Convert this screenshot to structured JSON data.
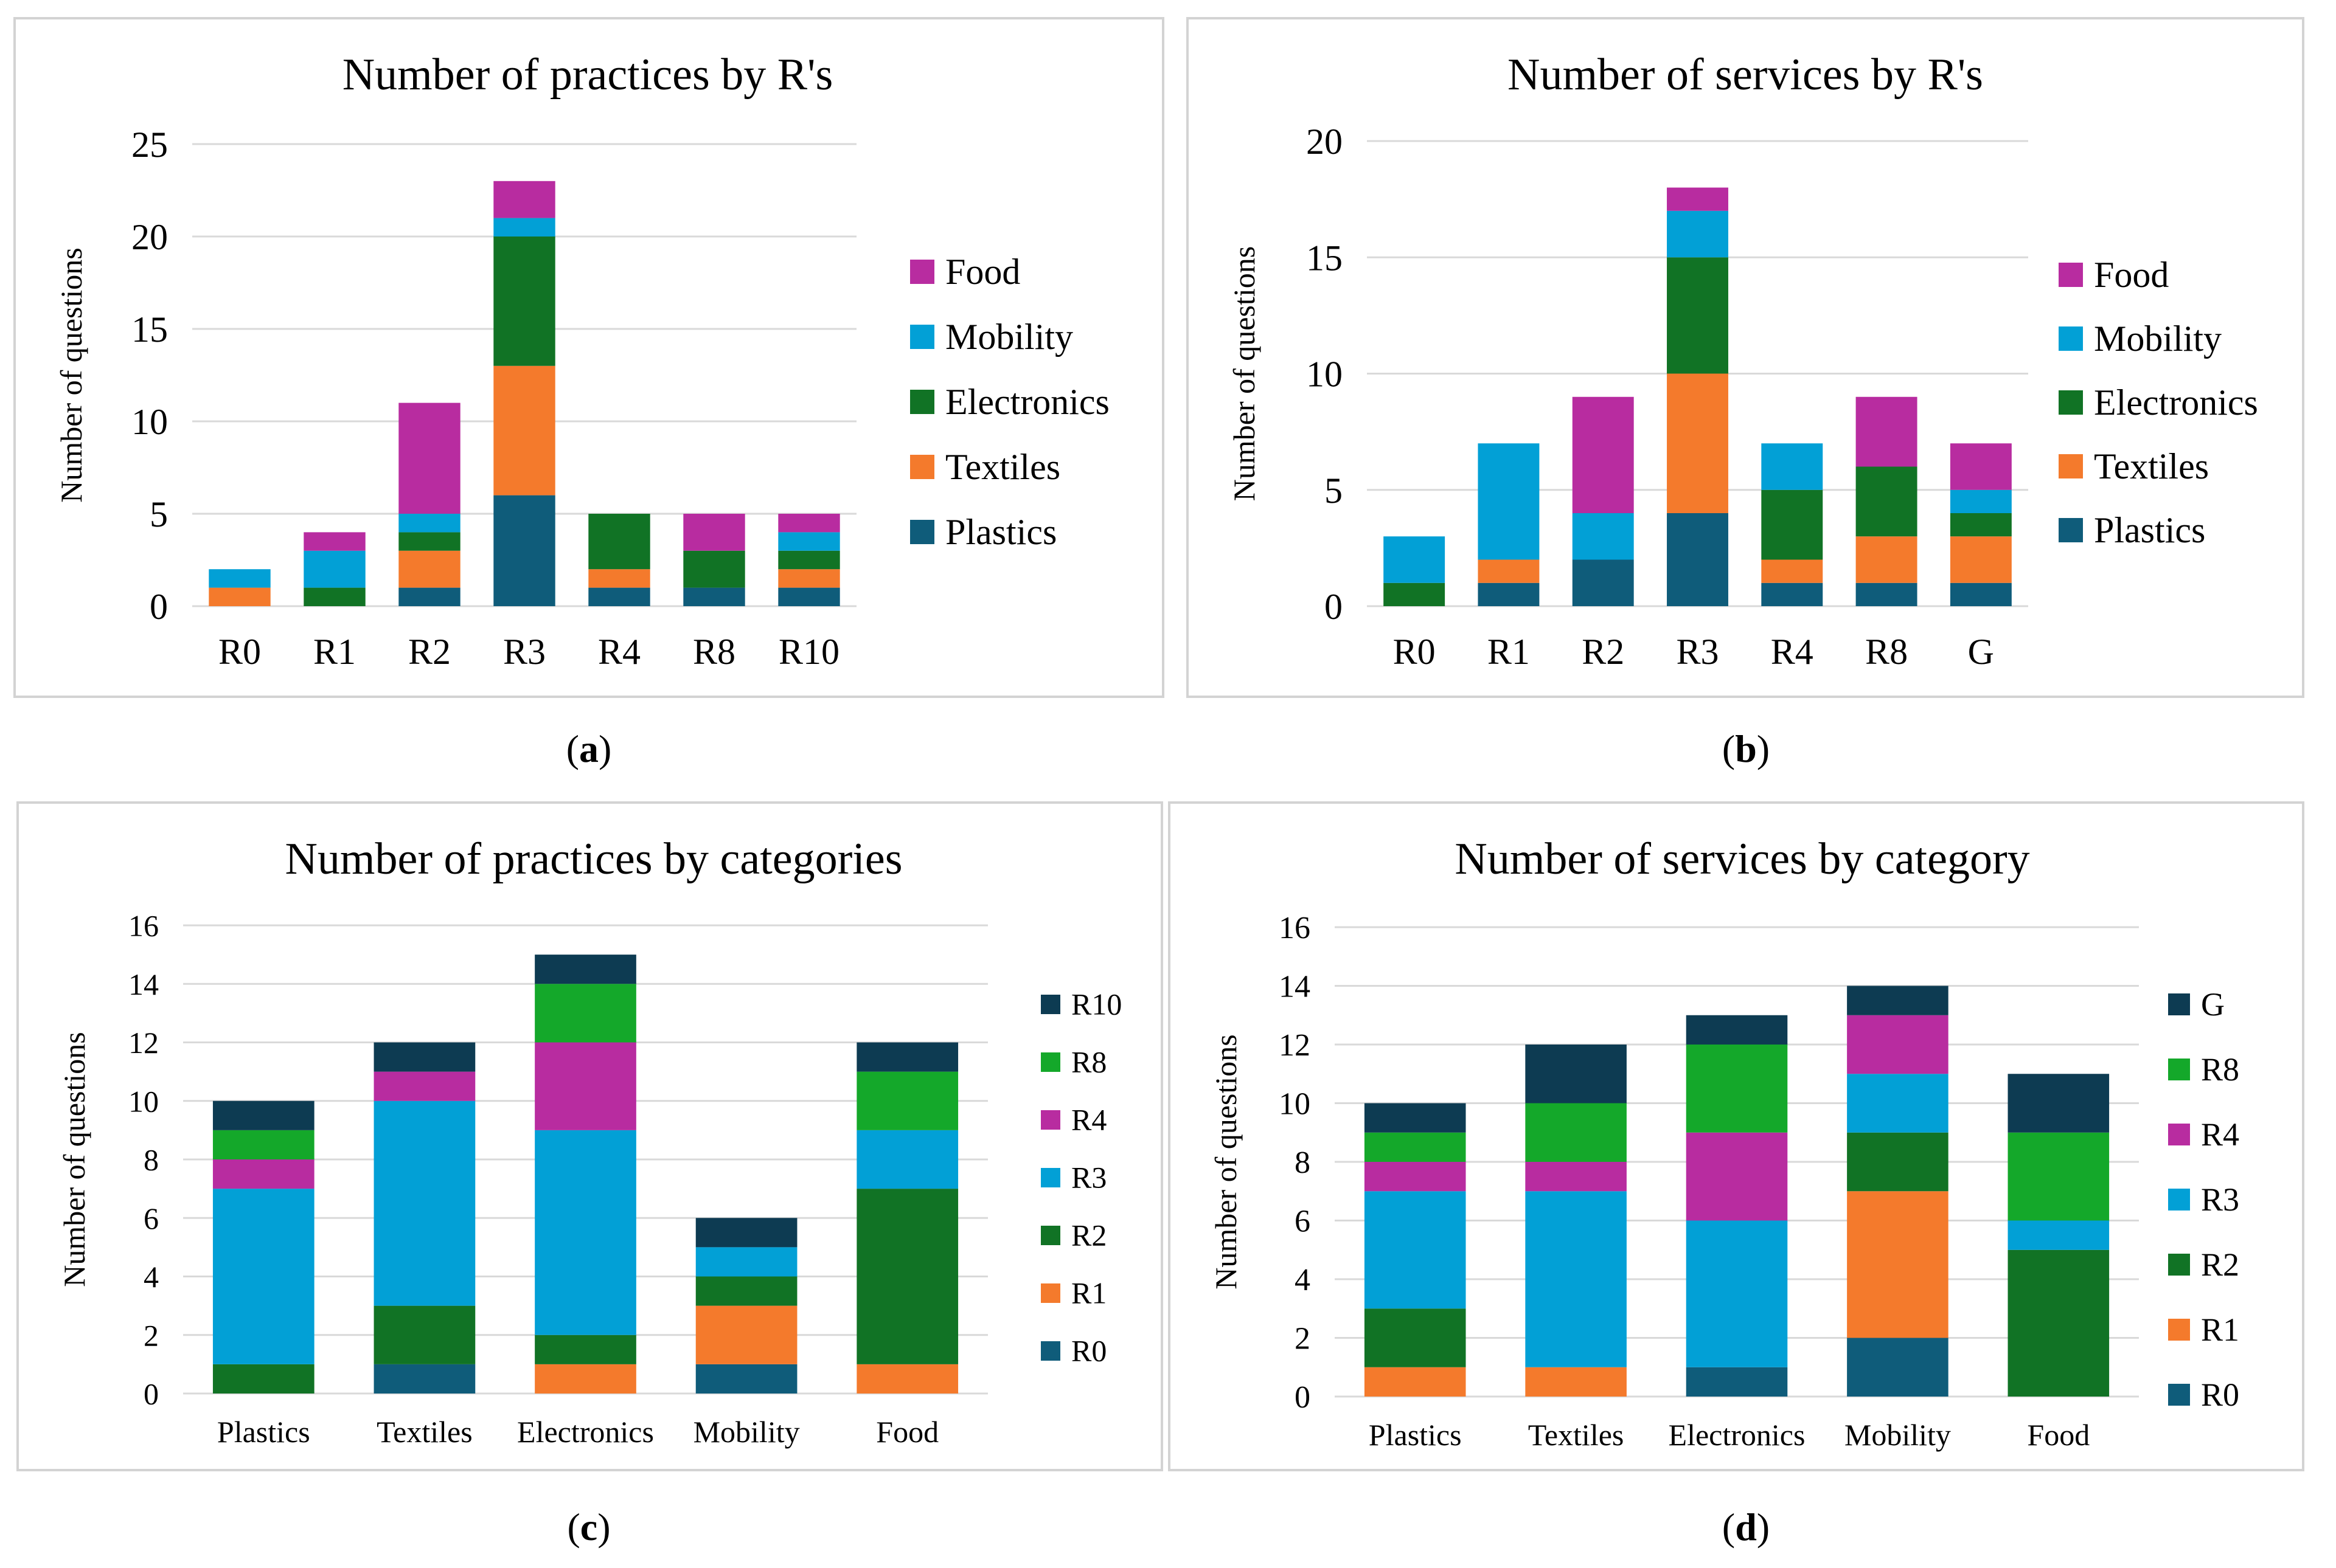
{
  "colors": {
    "Plastics": "#0f5c7a",
    "Textiles": "#f47a2c",
    "Electronics": "#117325",
    "Mobility": "#02a0d6",
    "Food": "#b82ca0",
    "R0": "#0f5c7a",
    "R1": "#f47a2c",
    "R2": "#117325",
    "R3": "#02a0d6",
    "R4": "#b82ca0",
    "R8": "#14a82a",
    "R10": "#0d3b52",
    "G": "#0d3b52"
  },
  "captions": [
    {
      "open": "(",
      "letter": "a",
      "close": ")"
    },
    {
      "open": "(",
      "letter": "b",
      "close": ")"
    },
    {
      "open": "(",
      "letter": "c",
      "close": ")"
    },
    {
      "open": "(",
      "letter": "d",
      "close": ")"
    }
  ],
  "chart_data": [
    {
      "type": "bar",
      "stacked": true,
      "title": "Number of practices by R's",
      "xlabel": "",
      "ylabel": "Number of questions",
      "ylim": [
        0,
        25
      ],
      "yticks": [
        0,
        5,
        10,
        15,
        20,
        25
      ],
      "grid": true,
      "legend_position": "right",
      "categories": [
        "R0",
        "R1",
        "R2",
        "R3",
        "R4",
        "R8",
        "R10"
      ],
      "series": [
        {
          "name": "Plastics",
          "values": [
            0,
            0,
            1,
            6,
            1,
            1,
            1
          ]
        },
        {
          "name": "Textiles",
          "values": [
            1,
            0,
            2,
            7,
            1,
            0,
            1
          ]
        },
        {
          "name": "Electronics",
          "values": [
            0,
            1,
            1,
            7,
            3,
            2,
            1
          ]
        },
        {
          "name": "Mobility",
          "values": [
            1,
            2,
            1,
            1,
            0,
            0,
            1
          ]
        },
        {
          "name": "Food",
          "values": [
            0,
            1,
            6,
            2,
            0,
            2,
            1
          ]
        }
      ]
    },
    {
      "type": "bar",
      "stacked": true,
      "title": "Number of services  by R's",
      "xlabel": "",
      "ylabel": "Number of questions",
      "ylim": [
        0,
        20
      ],
      "yticks": [
        0,
        5,
        10,
        15,
        20
      ],
      "grid": true,
      "legend_position": "right",
      "categories": [
        "R0",
        "R1",
        "R2",
        "R3",
        "R4",
        "R8",
        "G"
      ],
      "series": [
        {
          "name": "Plastics",
          "values": [
            0,
            1,
            2,
            4,
            1,
            1,
            1
          ]
        },
        {
          "name": "Textiles",
          "values": [
            0,
            1,
            0,
            6,
            1,
            2,
            2
          ]
        },
        {
          "name": "Electronics",
          "values": [
            1,
            0,
            0,
            5,
            3,
            3,
            1
          ]
        },
        {
          "name": "Mobility",
          "values": [
            2,
            5,
            2,
            2,
            2,
            0,
            1
          ]
        },
        {
          "name": "Food",
          "values": [
            0,
            0,
            5,
            1,
            0,
            3,
            2
          ]
        }
      ]
    },
    {
      "type": "bar",
      "stacked": true,
      "title": "Number of practices by categories",
      "xlabel": "",
      "ylabel": "Number of questions",
      "ylim": [
        0,
        16
      ],
      "yticks": [
        0,
        2,
        4,
        6,
        8,
        10,
        12,
        14,
        16
      ],
      "grid": true,
      "legend_position": "right",
      "categories": [
        "Plastics",
        "Textiles",
        "Electronics",
        "Mobility",
        "Food"
      ],
      "series": [
        {
          "name": "R0",
          "values": [
            0,
            1,
            0,
            1,
            0
          ]
        },
        {
          "name": "R1",
          "values": [
            0,
            0,
            1,
            2,
            1
          ]
        },
        {
          "name": "R2",
          "values": [
            1,
            2,
            1,
            1,
            6
          ]
        },
        {
          "name": "R3",
          "values": [
            6,
            7,
            7,
            1,
            2
          ]
        },
        {
          "name": "R4",
          "values": [
            1,
            1,
            3,
            0,
            0
          ]
        },
        {
          "name": "R8",
          "values": [
            1,
            0,
            2,
            0,
            2
          ]
        },
        {
          "name": "R10",
          "values": [
            1,
            1,
            1,
            1,
            1
          ]
        }
      ]
    },
    {
      "type": "bar",
      "stacked": true,
      "title": "Number of services  by category",
      "xlabel": "",
      "ylabel": "Number of questions",
      "ylim": [
        0,
        16
      ],
      "yticks": [
        0,
        2,
        4,
        6,
        8,
        10,
        12,
        14,
        16
      ],
      "grid": true,
      "legend_position": "right",
      "categories": [
        "Plastics",
        "Textiles",
        "Electronics",
        "Mobility",
        "Food"
      ],
      "series": [
        {
          "name": "R0",
          "values": [
            0,
            0,
            1,
            2,
            0
          ]
        },
        {
          "name": "R1",
          "values": [
            1,
            1,
            0,
            5,
            0
          ]
        },
        {
          "name": "R2",
          "values": [
            2,
            0,
            0,
            2,
            5
          ]
        },
        {
          "name": "R3",
          "values": [
            4,
            6,
            5,
            2,
            1
          ]
        },
        {
          "name": "R4",
          "values": [
            1,
            1,
            3,
            2,
            0
          ]
        },
        {
          "name": "R8",
          "values": [
            1,
            2,
            3,
            0,
            3
          ]
        },
        {
          "name": "G",
          "values": [
            1,
            2,
            1,
            1,
            2
          ]
        }
      ]
    }
  ]
}
